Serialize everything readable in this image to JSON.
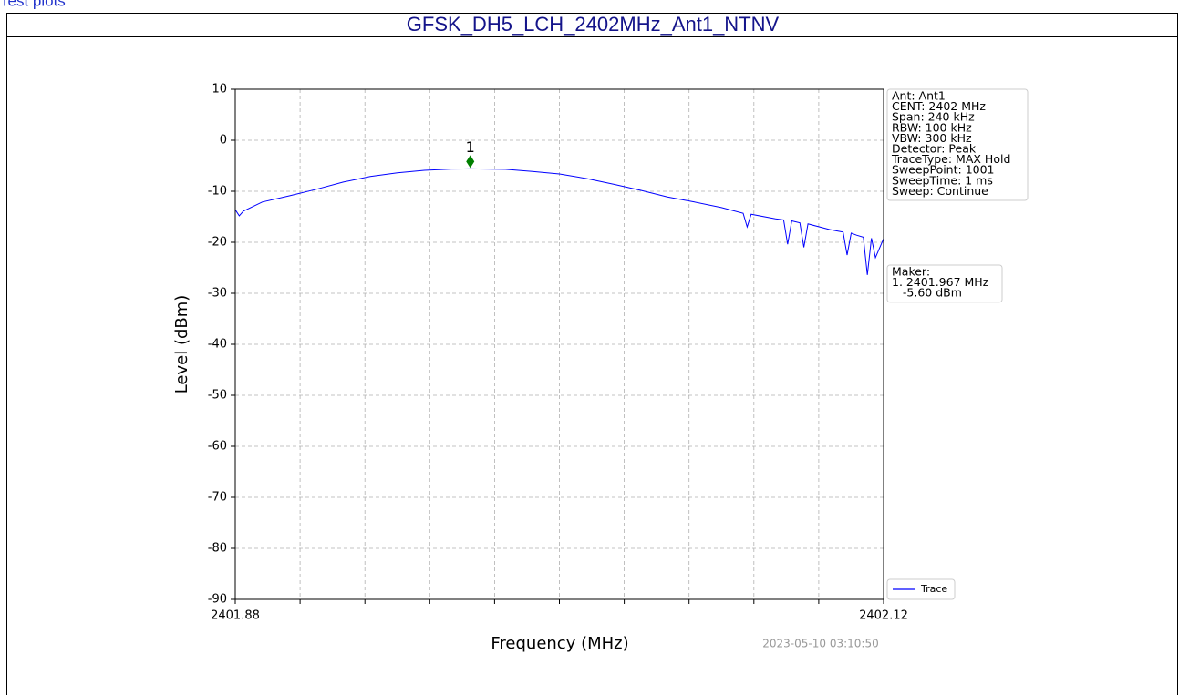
{
  "page": {
    "link": "Test plots",
    "title": "GFSK_DH5_LCH_2402MHz_Ant1_NTNV"
  },
  "chart_data": {
    "type": "line",
    "xlabel": "Frequency (MHz)",
    "ylabel": "Level (dBm)",
    "xlim": [
      2401.88,
      2402.12
    ],
    "xticks": [
      2401.88,
      2402.12
    ],
    "xminor_ticks": [
      2401.904,
      2401.928,
      2401.952,
      2401.976,
      2402.0,
      2402.024,
      2402.048,
      2402.072,
      2402.096
    ],
    "ylim": [
      -90,
      10
    ],
    "yticks": [
      -90,
      -80,
      -70,
      -60,
      -50,
      -40,
      -30,
      -20,
      -10,
      0,
      10
    ],
    "grid": true,
    "legend": "lower right",
    "series": [
      {
        "name": "Trace",
        "color": "#0000ff",
        "x": [
          2401.88,
          2401.8815,
          2401.883,
          2401.89,
          2401.9,
          2401.91,
          2401.92,
          2401.93,
          2401.94,
          2401.95,
          2401.96,
          2401.967,
          2401.97,
          2401.98,
          2401.99,
          2402.0,
          2402.01,
          2402.02,
          2402.03,
          2402.04,
          2402.05,
          2402.06,
          2402.068,
          2402.0695,
          2402.071,
          2402.08,
          2402.083,
          2402.0845,
          2402.086,
          2402.089,
          2402.0905,
          2402.092,
          2402.1,
          2402.105,
          2402.1065,
          2402.108,
          2402.11,
          2402.1125,
          2402.114,
          2402.1155,
          2402.117,
          2402.12
        ],
        "values": [
          -13.6,
          -14.8,
          -13.9,
          -12.1,
          -10.9,
          -9.6,
          -8.2,
          -7.1,
          -6.4,
          -5.9,
          -5.65,
          -5.6,
          -5.62,
          -5.7,
          -6.1,
          -6.6,
          -7.5,
          -8.6,
          -9.8,
          -11.1,
          -12.1,
          -13.2,
          -14.3,
          -17.0,
          -14.5,
          -15.4,
          -15.6,
          -20.4,
          -15.8,
          -16.2,
          -21.0,
          -16.4,
          -17.5,
          -18.0,
          -22.5,
          -18.2,
          -18.6,
          -19.0,
          -26.4,
          -19.2,
          -23.0,
          -19.3
        ]
      }
    ],
    "marker": {
      "label": "1",
      "x": 2401.967,
      "y": -5.6,
      "color": "#007f00"
    },
    "info_box": [
      "Ant: Ant1",
      "CENT: 2402 MHz",
      "Span: 240 kHz",
      "RBW: 100 kHz",
      "VBW: 300 kHz",
      "Detector: Peak",
      "TraceType: MAX Hold",
      "SweepPoint: 1001",
      "SweepTime: 1 ms",
      "Sweep: Continue"
    ],
    "marker_box": [
      "Maker:",
      "1. 2401.967 MHz",
      "   -5.60 dBm"
    ],
    "timestamp": "2023-05-10 03:10:50"
  }
}
